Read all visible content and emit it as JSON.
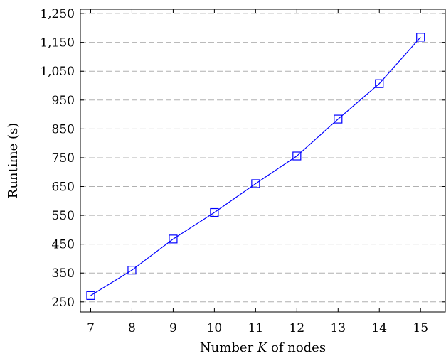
{
  "chart_data": {
    "type": "line",
    "title": "",
    "xlabel_parts": [
      "Number ",
      "K",
      " of nodes"
    ],
    "ylabel": "Runtime (s)",
    "xlim": [
      6.75,
      15.6
    ],
    "ylim": [
      215,
      1265
    ],
    "x_ticks": [
      7,
      8,
      9,
      10,
      11,
      12,
      13,
      14,
      15
    ],
    "x_tick_labels": [
      "7",
      "8",
      "9",
      "10",
      "11",
      "12",
      "13",
      "14",
      "15"
    ],
    "y_ticks": [
      250,
      350,
      450,
      550,
      650,
      750,
      850,
      950,
      1050,
      1150,
      1250
    ],
    "y_tick_labels": [
      "250",
      "350",
      "450",
      "550",
      "650",
      "750",
      "850",
      "950",
      "1,050",
      "1,150",
      "1,250"
    ],
    "grid": "horizontal-dashed",
    "series": [
      {
        "marker": "square",
        "color": "#0000ff",
        "x": [
          7,
          8,
          9,
          10,
          11,
          12,
          13,
          14,
          15
        ],
        "values": [
          272,
          360,
          468,
          560,
          660,
          756,
          884,
          1007,
          1168
        ]
      }
    ]
  }
}
